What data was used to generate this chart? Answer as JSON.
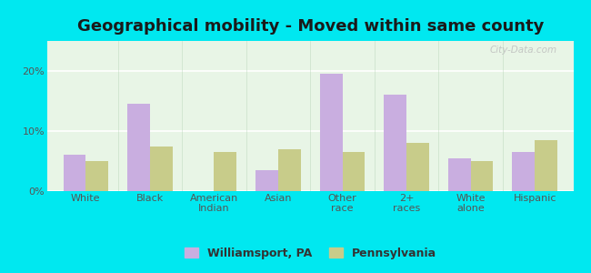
{
  "title": "Geographical mobility - Moved within same county",
  "categories": [
    "White",
    "Black",
    "American\nIndian",
    "Asian",
    "Other\nrace",
    "2+\nraces",
    "White\nalone",
    "Hispanic"
  ],
  "williamsport_values": [
    6.0,
    14.5,
    0.0,
    3.5,
    19.5,
    16.0,
    5.5,
    6.5
  ],
  "pennsylvania_values": [
    5.0,
    7.5,
    6.5,
    7.0,
    6.5,
    8.0,
    5.0,
    8.5
  ],
  "williamsport_color": "#c9aee0",
  "pennsylvania_color": "#c8cc8a",
  "background_color": "#00e8f0",
  "plot_bg_color": "#e8f5e6",
  "ylim": [
    0,
    25
  ],
  "yticks": [
    0,
    10,
    20
  ],
  "ytick_labels": [
    "0%",
    "10%",
    "20%"
  ],
  "bar_width": 0.35,
  "legend_labels": [
    "Williamsport, PA",
    "Pennsylvania"
  ],
  "watermark": "City-Data.com",
  "title_fontsize": 13,
  "tick_fontsize": 8,
  "legend_fontsize": 9
}
